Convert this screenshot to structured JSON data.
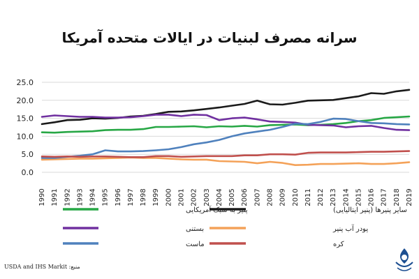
{
  "chart_data": {
    "type": "line",
    "title": "سرانه مصرف لبنیات در ایالات متحده آمریکا",
    "source": "منبع: USDA and IHS Markit",
    "ylim": [
      0,
      25
    ],
    "yticks": [
      "0.0",
      "5.0",
      "10.0",
      "15.0",
      "20.0",
      "25.0"
    ],
    "grid": true,
    "legend_position": "bottom",
    "x": [
      "1990",
      "1991",
      "1992",
      "1993",
      "1994",
      "1995",
      "1996",
      "1997",
      "1998",
      "1999",
      "2000",
      "2001",
      "2002",
      "2003",
      "2004",
      "2005",
      "2006",
      "2007",
      "2008",
      "2009",
      "2010",
      "2011",
      "2012",
      "2013",
      "2014",
      "2015",
      "2016",
      "2017",
      "2018",
      "2019"
    ],
    "series": [
      {
        "name": "سایر پنیرها (پنیر ایتالیایی)",
        "color": "#1a1a1a",
        "values": [
          13.4,
          13.9,
          14.5,
          14.6,
          15.0,
          14.9,
          15.1,
          15.5,
          15.7,
          16.2,
          16.8,
          16.9,
          17.2,
          17.6,
          18.0,
          18.5,
          19.0,
          19.9,
          18.9,
          18.8,
          19.3,
          19.9,
          20.0,
          20.1,
          20.6,
          21.1,
          22.0,
          21.8,
          22.5,
          22.9
        ]
      },
      {
        "name": "پنیر به سبک آمریکایی",
        "color": "#27a745",
        "values": [
          11.1,
          11.0,
          11.2,
          11.3,
          11.4,
          11.7,
          11.8,
          11.8,
          12.0,
          12.6,
          12.6,
          12.7,
          12.8,
          12.5,
          12.8,
          12.7,
          12.9,
          12.7,
          13.1,
          13.2,
          13.3,
          13.1,
          13.2,
          13.4,
          13.7,
          14.2,
          14.5,
          15.1,
          15.3,
          15.5
        ]
      },
      {
        "name": "بستنی",
        "color": "#7030a0",
        "values": [
          15.4,
          15.8,
          15.6,
          15.4,
          15.4,
          15.2,
          15.2,
          15.3,
          15.6,
          16.0,
          16.0,
          15.6,
          16.0,
          15.9,
          14.5,
          15.0,
          15.2,
          14.7,
          14.1,
          14.0,
          13.8,
          13.2,
          13.1,
          13.0,
          12.5,
          12.8,
          12.9,
          12.3,
          11.8,
          11.7
        ]
      },
      {
        "name": "پودر آب پنیر",
        "color": "#f4a259",
        "values": [
          3.5,
          3.6,
          3.7,
          3.8,
          3.8,
          3.9,
          4.0,
          4.1,
          4.0,
          4.0,
          3.8,
          3.6,
          3.5,
          3.5,
          3.1,
          3.0,
          2.9,
          2.5,
          2.9,
          2.6,
          2.0,
          2.1,
          2.3,
          2.3,
          2.4,
          2.5,
          2.3,
          2.3,
          2.5,
          2.8
        ]
      },
      {
        "name": "ماست",
        "color": "#4f81bd",
        "values": [
          4.0,
          4.0,
          4.3,
          4.6,
          5.0,
          6.1,
          5.8,
          5.8,
          5.9,
          6.1,
          6.4,
          7.0,
          7.8,
          8.3,
          9.0,
          10.0,
          10.8,
          11.3,
          11.8,
          12.6,
          13.5,
          13.4,
          14.0,
          14.9,
          14.8,
          14.2,
          13.7,
          13.6,
          13.4,
          13.3
        ]
      },
      {
        "name": "کره",
        "color": "#c0504d",
        "values": [
          4.4,
          4.3,
          4.4,
          4.3,
          4.4,
          4.4,
          4.3,
          4.2,
          4.2,
          4.5,
          4.5,
          4.3,
          4.4,
          4.5,
          4.5,
          4.5,
          4.7,
          4.7,
          5.0,
          5.0,
          4.9,
          5.4,
          5.5,
          5.5,
          5.5,
          5.6,
          5.7,
          5.7,
          5.8,
          5.9
        ]
      }
    ]
  }
}
